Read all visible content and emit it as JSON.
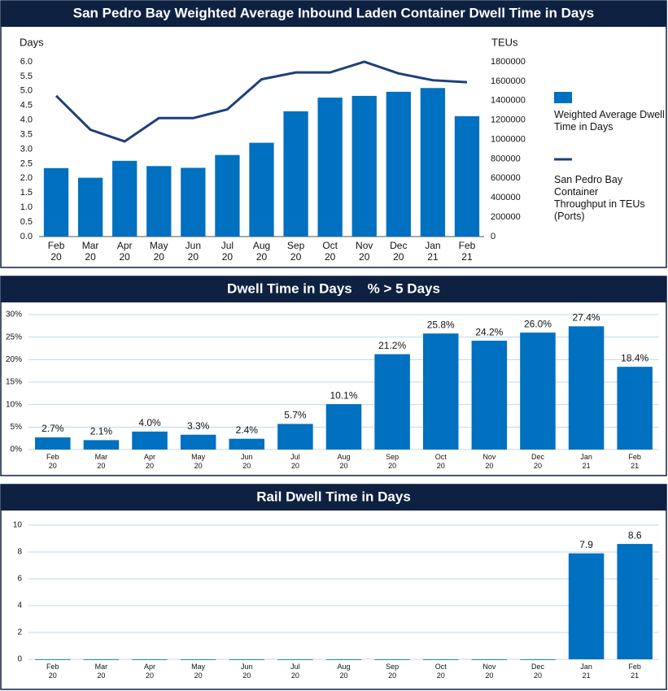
{
  "chart_data": [
    {
      "type": "bar_line",
      "title": "San Pedro Bay Weighted Average Inbound Laden Container Dwell Time in Days",
      "y_label": "Days",
      "y2_label": "TEUs",
      "categories": [
        "Feb 20",
        "Mar 20",
        "Apr 20",
        "May 20",
        "Jun 20",
        "Jul 20",
        "Aug 20",
        "Sep 20",
        "Oct 20",
        "Nov 20",
        "Dec 20",
        "Jan 21",
        "Feb 21"
      ],
      "series": [
        {
          "name": "Weighted Average Dwell Time in Days",
          "type": "bar",
          "color": "#0070c0",
          "values": [
            2.35,
            2.02,
            2.6,
            2.42,
            2.36,
            2.8,
            3.22,
            4.3,
            4.77,
            4.83,
            4.97,
            5.1,
            4.13
          ]
        },
        {
          "name": "San Pedro Bay Container Throughput in TEUs (Ports)",
          "type": "line",
          "axis": "y2",
          "color": "#1f3f7a",
          "values": [
            1450000,
            1100000,
            980000,
            1220000,
            1220000,
            1310000,
            1620000,
            1690000,
            1690000,
            1800000,
            1680000,
            1610000,
            1590000
          ]
        }
      ],
      "ylim": [
        0,
        6
      ],
      "yticks": [
        {
          "value": 0,
          "label": "0.0"
        },
        {
          "value": 0.5,
          "label": "0.5"
        },
        {
          "value": 1,
          "label": "1.0"
        },
        {
          "value": 1.5,
          "label": "1.5"
        },
        {
          "value": 2,
          "label": "2.0"
        },
        {
          "value": 2.5,
          "label": "2.5"
        },
        {
          "value": 3,
          "label": "3.0"
        },
        {
          "value": 3.5,
          "label": "3.5"
        },
        {
          "value": 4,
          "label": "4.0"
        },
        {
          "value": 4.5,
          "label": "4.5"
        },
        {
          "value": 5,
          "label": "5.0"
        },
        {
          "value": 5.5,
          "label": "5.5"
        },
        {
          "value": 6,
          "label": "6.0"
        }
      ],
      "y2lim": [
        0,
        1800000
      ],
      "y2ticks": [
        0,
        200000,
        400000,
        600000,
        800000,
        1000000,
        1200000,
        1400000,
        1600000,
        1800000
      ],
      "grid": false,
      "legend": "right"
    },
    {
      "type": "bar",
      "title": "Dwell Time in Days    % > 5 Days",
      "categories": [
        "Feb 20",
        "Mar 20",
        "Apr 20",
        "May 20",
        "Jun 20",
        "Jul 20",
        "Aug 20",
        "Sep 20",
        "Oct 20",
        "Nov 20",
        "Dec 20",
        "Jan 21",
        "Feb 21"
      ],
      "values": [
        2.7,
        2.1,
        4.0,
        3.3,
        2.4,
        5.7,
        10.1,
        21.2,
        25.8,
        24.2,
        26.0,
        27.4,
        18.4
      ],
      "value_labels": [
        "2.7%",
        "2.1%",
        "4.0%",
        "3.3%",
        "2.4%",
        "5.7%",
        "10.1%",
        "21.2%",
        "25.8%",
        "24.2%",
        "26.0%",
        "27.4%",
        "18.4%"
      ],
      "color": "#0070c0",
      "ylim": [
        0,
        30
      ],
      "yticks": [
        {
          "value": 0,
          "label": "0%"
        },
        {
          "value": 5,
          "label": "5%"
        },
        {
          "value": 10,
          "label": "10%"
        },
        {
          "value": 15,
          "label": "15%"
        },
        {
          "value": 20,
          "label": "20%"
        },
        {
          "value": 25,
          "label": "25%"
        },
        {
          "value": 30,
          "label": "30%"
        }
      ],
      "grid": true
    },
    {
      "type": "bar",
      "title": "Rail Dwell Time in Days",
      "categories": [
        "Feb 20",
        "Mar 20",
        "Apr 20",
        "May 20",
        "Jun 20",
        "Jul 20",
        "Aug 20",
        "Sep 20",
        "Oct 20",
        "Nov 20",
        "Dec 20",
        "Jan 21",
        "Feb 21"
      ],
      "values": [
        0,
        0,
        0,
        0,
        0,
        0,
        0,
        0,
        0,
        0,
        0,
        7.9,
        8.6
      ],
      "value_labels": [
        null,
        null,
        null,
        null,
        null,
        null,
        null,
        null,
        null,
        null,
        null,
        "7.9",
        "8.6"
      ],
      "color": "#0070c0",
      "ylim": [
        0,
        10
      ],
      "yticks": [
        0,
        2,
        4,
        6,
        8,
        10
      ],
      "grid": true
    }
  ]
}
